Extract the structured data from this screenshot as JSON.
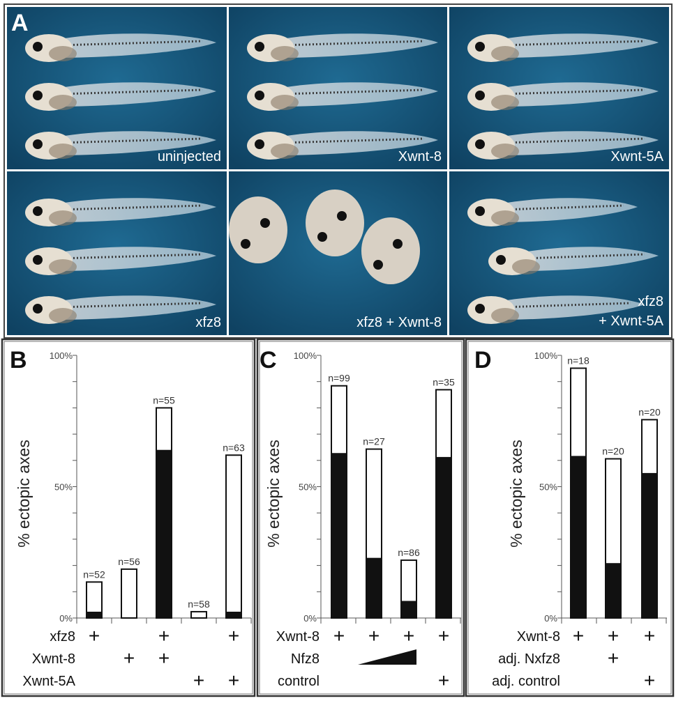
{
  "panel_a": {
    "letter": "A",
    "colors": {
      "background": "#17557a",
      "frame": "#4a4a4a",
      "label": "#ffffff"
    },
    "cells": [
      {
        "label": "uninjected"
      },
      {
        "label": "Xwnt-8"
      },
      {
        "label": "Xwnt-5A"
      },
      {
        "label": "xfz8"
      },
      {
        "label": "xfz8 + Xwnt-8"
      },
      {
        "label_line1": "xfz8",
        "label_line2": "+ Xwnt-5A"
      }
    ]
  },
  "chart_data": [
    {
      "panel": "B",
      "type": "bar",
      "stacked": true,
      "ylabel": "% ectopic axes",
      "ylim": [
        0,
        100
      ],
      "yticks": [
        "0%",
        "50%",
        "100%"
      ],
      "n_labels": [
        "n=52",
        "n=56",
        "n=55",
        "n=58",
        "n=63"
      ],
      "series": [
        {
          "name": "complete (black)",
          "values": [
            2.4,
            0,
            64,
            0,
            2.4
          ]
        },
        {
          "name": "total",
          "values": [
            13.7,
            18.6,
            80,
            2.4,
            62
          ]
        }
      ],
      "conditions": [
        {
          "label": "xfz8",
          "marks": [
            "+",
            "",
            "+",
            "",
            "+"
          ]
        },
        {
          "label": "Xwnt-8",
          "marks": [
            "",
            "+",
            "+",
            "",
            ""
          ]
        },
        {
          "label": "Xwnt-5A",
          "marks": [
            "",
            "",
            "",
            "+",
            "+"
          ]
        }
      ]
    },
    {
      "panel": "C",
      "type": "bar",
      "stacked": true,
      "ylabel": "% ectopic axes",
      "ylim": [
        0,
        100
      ],
      "yticks": [
        "0%",
        "50%",
        "100%"
      ],
      "n_labels": [
        "n=99",
        "n=27",
        "n=86",
        "n=35"
      ],
      "series": [
        {
          "name": "complete (black)",
          "values": [
            62.8,
            22.9,
            6.5,
            61.3
          ]
        },
        {
          "name": "total",
          "values": [
            88.4,
            64.3,
            22,
            86.9
          ]
        }
      ],
      "conditions": [
        {
          "label": "Xwnt-8",
          "marks": [
            "+",
            "+",
            "+",
            "+"
          ]
        },
        {
          "label": "Nfz8",
          "marks": [
            "",
            "ramp",
            "ramp",
            ""
          ]
        },
        {
          "label": "control",
          "marks": [
            "",
            "",
            "",
            "+"
          ]
        }
      ]
    },
    {
      "panel": "D",
      "type": "bar",
      "stacked": true,
      "ylabel": "% ectopic axes",
      "ylim": [
        0,
        100
      ],
      "yticks": [
        "0%",
        "50%",
        "100%"
      ],
      "n_labels": [
        "n=18",
        "n=20",
        "n=20"
      ],
      "series": [
        {
          "name": "complete (black)",
          "values": [
            61.7,
            20.9,
            55.2
          ]
        },
        {
          "name": "total",
          "values": [
            95.1,
            60.6,
            75.5
          ]
        }
      ],
      "conditions": [
        {
          "label": "Xwnt-8",
          "marks": [
            "+",
            "+",
            "+"
          ]
        },
        {
          "label": "adj. Nxfz8",
          "marks": [
            "",
            "+",
            ""
          ]
        },
        {
          "label": "adj. control",
          "marks": [
            "",
            "",
            "+"
          ]
        }
      ]
    }
  ]
}
